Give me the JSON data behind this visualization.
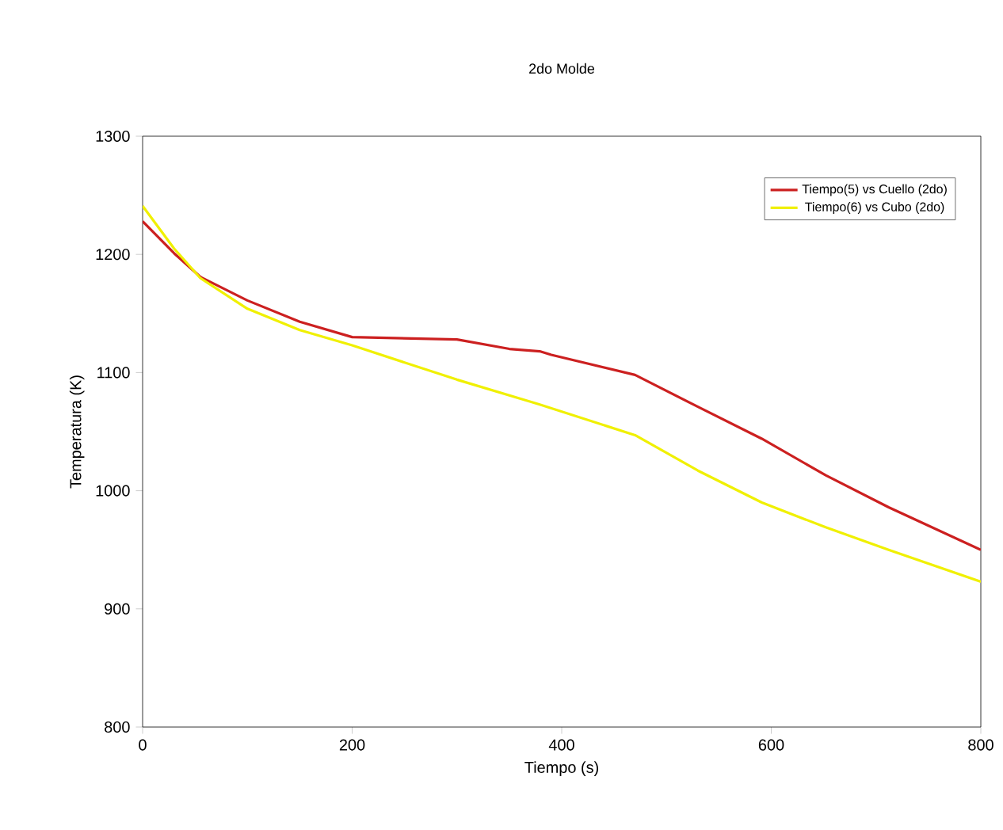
{
  "chart_data": {
    "type": "line",
    "title": "2do Molde",
    "xlabel": "Tiempo (s)",
    "ylabel": "Temperatura (K)",
    "xlim": [
      0,
      800
    ],
    "xticks": [
      0,
      200,
      400,
      600,
      800
    ],
    "ylim": [
      800,
      1300
    ],
    "yticks": [
      800,
      900,
      1000,
      1100,
      1200,
      1300
    ],
    "grid": false,
    "legend": "top right",
    "marker": "none",
    "line_style": "solid",
    "series": [
      {
        "name": "Tiempo(5) vs Cuello (2do)",
        "color": "#cc2020",
        "x": [
          0,
          30,
          55,
          100,
          150,
          200,
          300,
          350,
          379,
          390,
          470,
          530,
          591,
          652,
          712,
          800
        ],
        "values": [
          1228,
          1201,
          1181,
          1161,
          1143,
          1130,
          1128,
          1120,
          1118,
          1115,
          1098,
          1071,
          1044,
          1013,
          986,
          950
        ]
      },
      {
        "name": "Tiempo(6) vs Cubo (2do)",
        "color": "#f0f000",
        "x": [
          0,
          30,
          55,
          100,
          150,
          200,
          300,
          379,
          470,
          530,
          591,
          652,
          712,
          800
        ],
        "values": [
          1241,
          1205,
          1180,
          1154,
          1136,
          1123,
          1094,
          1073,
          1047,
          1017,
          990,
          969,
          950,
          923
        ]
      }
    ]
  }
}
